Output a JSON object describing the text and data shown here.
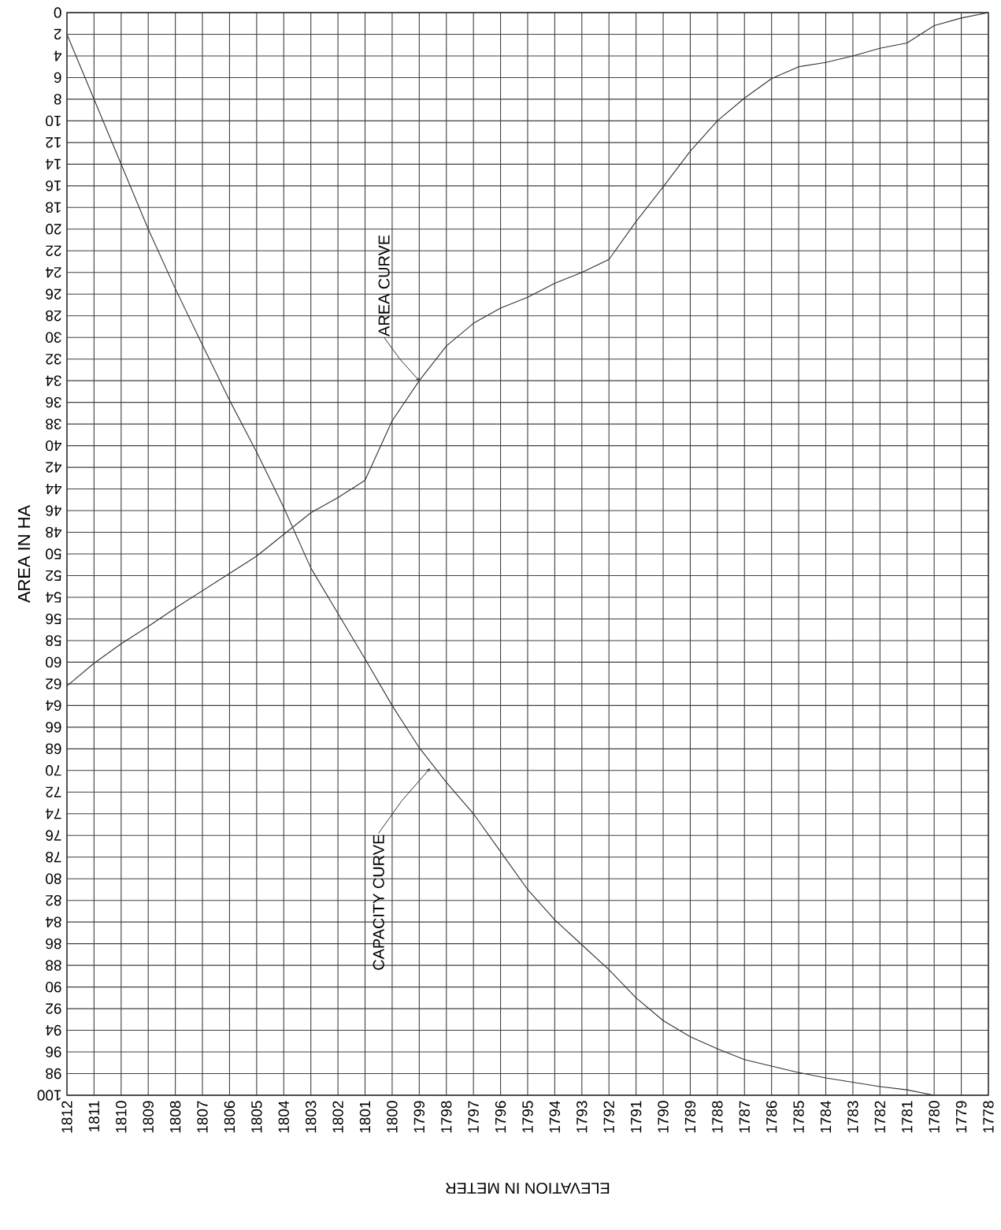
{
  "chart_data": {
    "type": "line",
    "xlabel": "ELEVATION IN METER",
    "ylabel": "AREA IN HA",
    "xlim": [
      1812,
      1778
    ],
    "ylim": [
      100,
      0
    ],
    "xticks": [
      1812,
      1811,
      1810,
      1809,
      1808,
      1807,
      1806,
      1805,
      1804,
      1803,
      1802,
      1801,
      1800,
      1799,
      1798,
      1797,
      1796,
      1795,
      1794,
      1793,
      1792,
      1791,
      1790,
      1789,
      1788,
      1787,
      1786,
      1785,
      1784,
      1783,
      1782,
      1781,
      1780,
      1779,
      1778
    ],
    "yticks": [
      0,
      2,
      4,
      6,
      8,
      10,
      12,
      14,
      16,
      18,
      20,
      22,
      24,
      26,
      28,
      30,
      32,
      34,
      36,
      38,
      40,
      42,
      44,
      46,
      48,
      50,
      52,
      54,
      56,
      58,
      60,
      62,
      64,
      66,
      68,
      70,
      72,
      74,
      76,
      78,
      80,
      82,
      84,
      86,
      88,
      90,
      92,
      94,
      96,
      98,
      100
    ],
    "grid": true,
    "legend": false,
    "marker": "none",
    "line_style": "solid",
    "series": [
      {
        "color": "#333333",
        "x": [
          1812,
          1811,
          1810,
          1809,
          1808,
          1807,
          1806,
          1805,
          1804,
          1803,
          1802,
          1801,
          1800,
          1799,
          1798,
          1797,
          1796,
          1795,
          1794,
          1793,
          1792,
          1791,
          1790,
          1789,
          1788,
          1787,
          1786,
          1785,
          1784,
          1783,
          1782,
          1781,
          1780,
          1779,
          1778
        ],
        "values": [
          62.2,
          60.1,
          58.3,
          56.7,
          55,
          53.4,
          51.8,
          50.2,
          48.2,
          46.2,
          44.8,
          43.2,
          37.7,
          34,
          30.8,
          28.7,
          27.3,
          26.3,
          25,
          24,
          22.8,
          19.3,
          16.1,
          12.8,
          10,
          7.9,
          6.1,
          5,
          4.6,
          4,
          3.3,
          2.8,
          1.2,
          0.5,
          0
        ]
      },
      {
        "color": "#333333",
        "x": [
          1812,
          1811,
          1810,
          1809,
          1808,
          1807,
          1806,
          1805,
          1804,
          1803,
          1802,
          1801,
          1800,
          1799,
          1798,
          1797,
          1796,
          1795,
          1794,
          1793,
          1792,
          1791,
          1790,
          1789,
          1788,
          1787,
          1786,
          1785,
          1784,
          1783,
          1782,
          1781,
          1780
        ],
        "values": [
          2,
          8,
          14,
          20,
          25.5,
          30.7,
          35.8,
          40.6,
          45.7,
          51.3,
          55.5,
          59.7,
          64,
          67.9,
          71.1,
          74,
          77.5,
          81,
          83.8,
          86.1,
          88.4,
          91,
          93.1,
          94.6,
          95.7,
          96.7,
          97.3,
          97.9,
          98.4,
          98.8,
          99.2,
          99.5,
          100
        ]
      }
    ],
    "annotations": [
      {
        "text": "AREA CURVE",
        "x": 1799,
        "y": 34
      },
      {
        "text": "CAPACITY CURVE",
        "x": 1798.6,
        "y": 69.8
      }
    ]
  }
}
